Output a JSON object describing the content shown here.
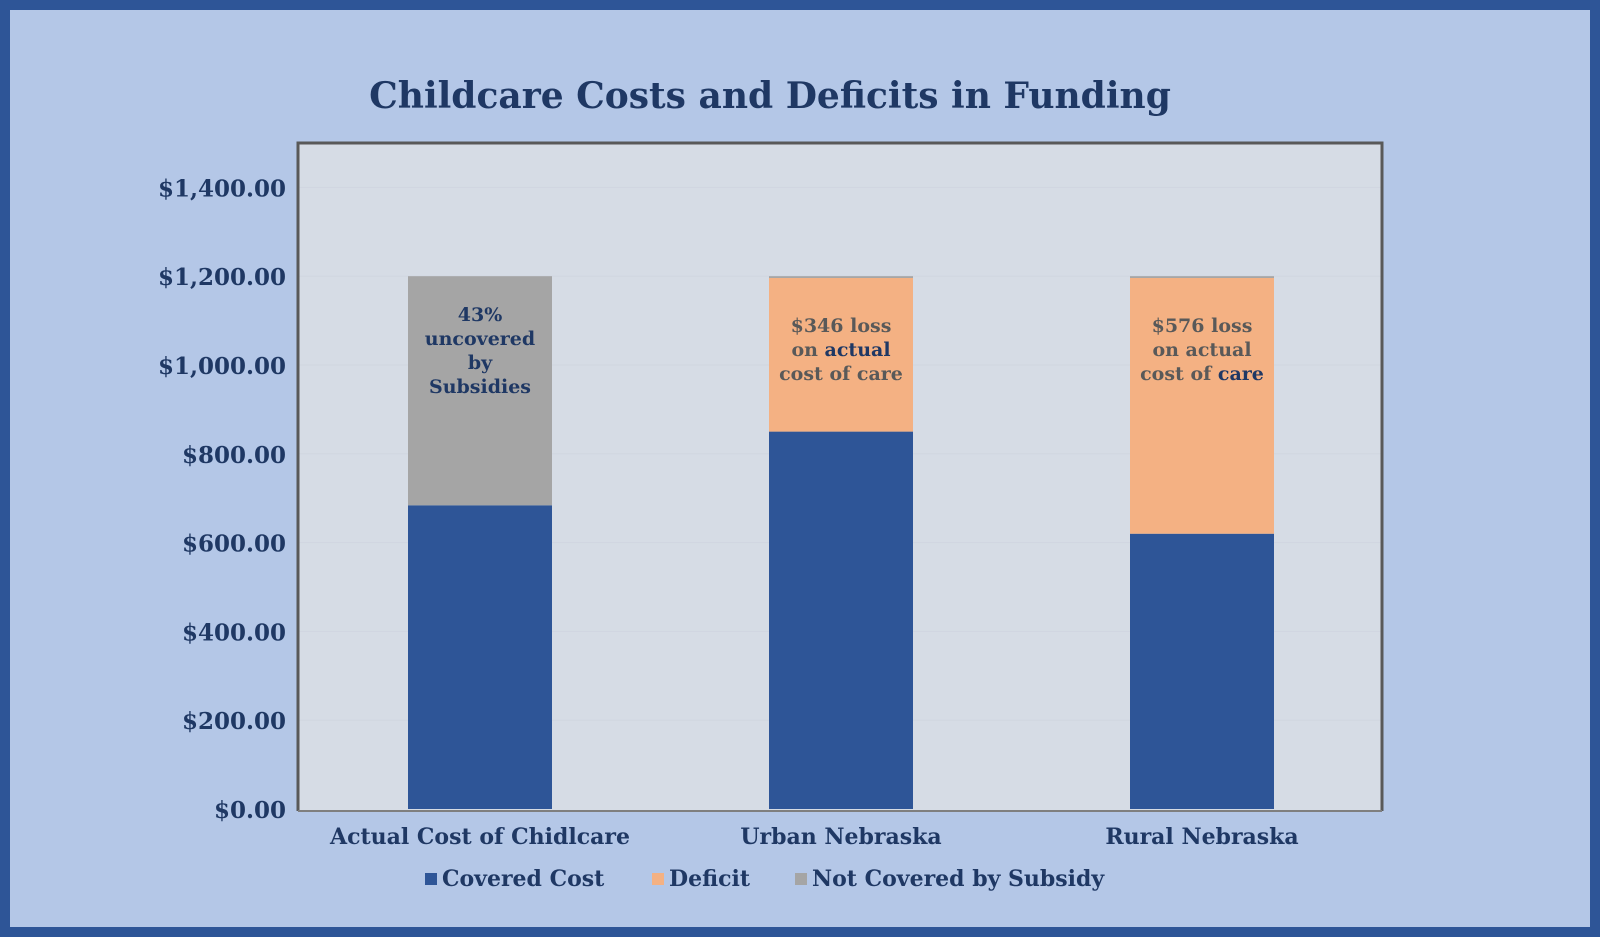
{
  "chart_data": {
    "type": "bar",
    "stacked": true,
    "title": "Childcare Costs and Deficits in Funding",
    "xlabel": "",
    "ylabel": "",
    "categories": [
      "Actual Cost of Chidlcare",
      "Urban Nebraska",
      "Rural Nebraska"
    ],
    "series": [
      {
        "name": "Covered Cost",
        "color": "#2E5597",
        "values": [
          684,
          850,
          620
        ]
      },
      {
        "name": "Deficit",
        "color": "#F4B183",
        "values": [
          0,
          346,
          576
        ]
      },
      {
        "name": "Not Covered by Subsidy",
        "color": "#A5A5A5",
        "values": [
          516,
          4,
          4
        ]
      }
    ],
    "ylim": [
      0,
      1500
    ],
    "yticks": [
      0,
      200,
      400,
      600,
      800,
      1000,
      1200,
      1400
    ],
    "ytick_labels": [
      "$0.00",
      "$200.00",
      "$400.00",
      "$600.00",
      "$800.00",
      "$1,000.00",
      "$1,200.00",
      "$1,400.00"
    ],
    "grid": true,
    "legend_position": "bottom",
    "annotations": [
      {
        "category": "Actual Cost of Chidlcare",
        "lines": [
          [
            [
              "43%",
              "#1F3864"
            ]
          ],
          [
            [
              "uncovered",
              "#1F3864"
            ]
          ],
          [
            [
              "by",
              "#1F3864"
            ]
          ],
          [
            [
              "Subsidies",
              "#1F3864"
            ]
          ]
        ]
      },
      {
        "category": "Urban Nebraska",
        "lines": [
          [
            [
              "$346 loss",
              "#595959"
            ]
          ],
          [
            [
              "on ",
              "#595959"
            ],
            [
              "actual",
              "#1F3864"
            ]
          ],
          [
            [
              "cost of care",
              "#595959"
            ]
          ]
        ]
      },
      {
        "category": "Rural Nebraska",
        "lines": [
          [
            [
              "$576 loss",
              "#595959"
            ]
          ],
          [
            [
              "on actual",
              "#595959"
            ]
          ],
          [
            [
              "cost of ",
              "#595959"
            ],
            [
              "care",
              "#1F3864"
            ]
          ]
        ]
      }
    ]
  },
  "colors": {
    "frame": "#2E5597",
    "background": "#B4C7E7",
    "plot_area": "#D6DCE5",
    "text": "#1F3864"
  }
}
